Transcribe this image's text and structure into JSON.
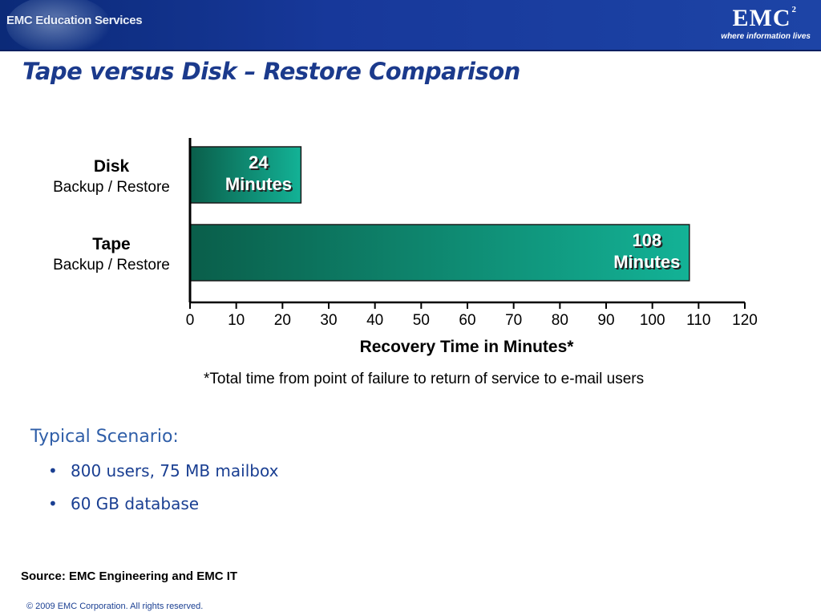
{
  "header": {
    "education_logo": "EMC Education Services",
    "brand_logo": "EMC",
    "brand_superscript": "2",
    "brand_tagline": "where information lives"
  },
  "slide": {
    "title": "Tape versus Disk – Restore Comparison"
  },
  "chart_data": {
    "type": "bar",
    "orientation": "horizontal",
    "categories": [
      {
        "name": "Disk",
        "sublabel": "Backup / Restore"
      },
      {
        "name": "Tape",
        "sublabel": "Backup / Restore"
      }
    ],
    "values": [
      24,
      108
    ],
    "bar_labels": [
      [
        "24",
        "Minutes"
      ],
      [
        "108",
        "Minutes"
      ]
    ],
    "xlabel": "Recovery Time in Minutes*",
    "xlim": [
      0,
      120
    ],
    "xticks": [
      0,
      10,
      20,
      30,
      40,
      50,
      60,
      70,
      80,
      90,
      100,
      110,
      120
    ],
    "grid": false,
    "colors": {
      "bar_dark": "#0a5e4a",
      "bar_light": "#13b296",
      "outline": "#1a1a1a"
    }
  },
  "footnote": "*Total time from point of failure to return of service to e-mail users",
  "scenario": {
    "heading": "Typical Scenario:",
    "items": [
      "800 users, 75 MB mailbox",
      "60 GB database"
    ]
  },
  "source": "Source: EMC Engineering and EMC IT",
  "copyright": "© 2009 EMC Corporation. All rights reserved.",
  "colors": {
    "banner": "#17389a",
    "title": "#1b3a8c",
    "scenario": "#2f5ea8"
  }
}
